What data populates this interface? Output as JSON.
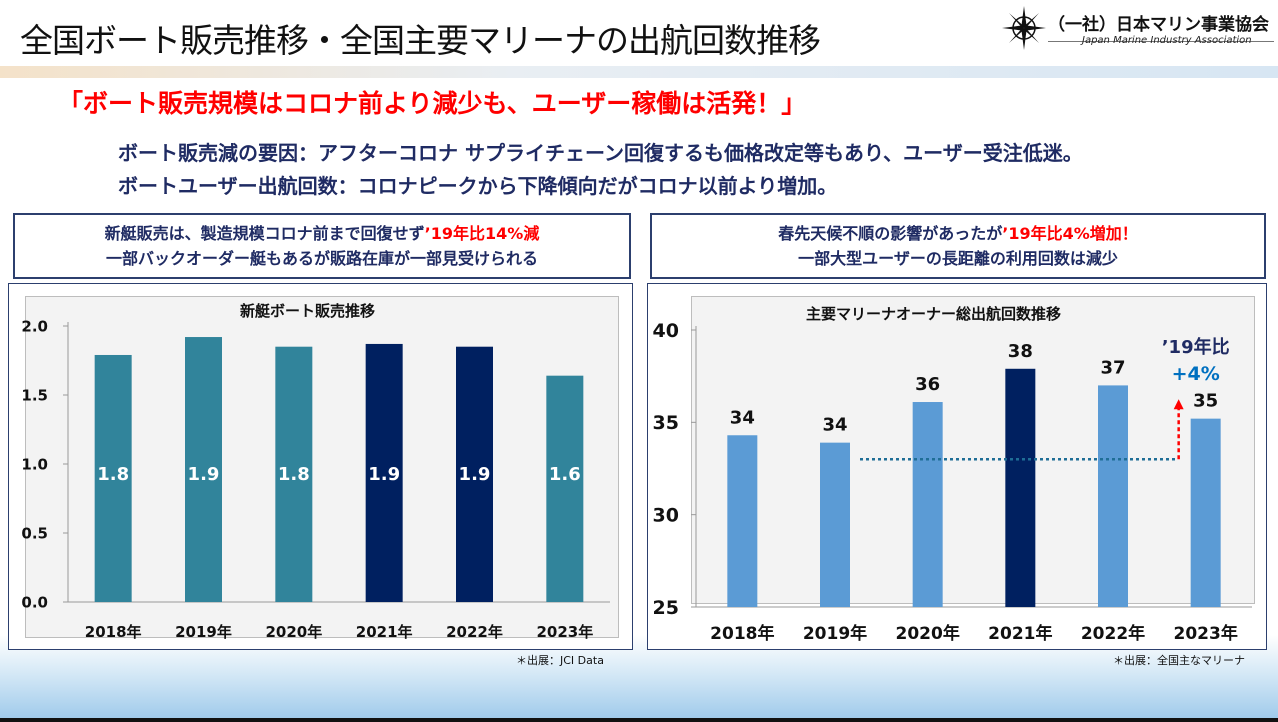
{
  "page": {
    "title": "全国ボート販売推移・全国主要マリーナの出航回数推移",
    "logo_name": "（一社）日本マリン事業協会",
    "logo_en": "Japan Marine Industry Association",
    "headline": "「ボート販売規模はコロナ前より減少も、ユーザー稼働は活発！」",
    "sub1": "ボート販売減の要因：アフターコロナ サプライチェーン回復するも価格改定等もあり、ユーザー受注低迷。",
    "sub2": "ボートユーザー出航回数：コロナピークから下降傾向だがコロナ以前より増加。"
  },
  "left_note": {
    "line1_a": "新艇販売は、製造規模コロナ前まで回復せず",
    "line1_b": "’19年比14%減",
    "line2": "一部バックオーダー艇もあるが販路在庫が一部見受けられる"
  },
  "right_note": {
    "line1_a": "春先天候不順の影響があったが",
    "line1_b": "’19年比4%増加！",
    "line2": "一部大型ユーザーの長距離の利用回数は減少"
  },
  "sources": {
    "left": "＊出展：JCI Data",
    "right": "＊出展：全国主なマリーナ"
  },
  "colors": {
    "teal": "#31849b",
    "navy": "#002060",
    "light_blue": "#5b9bd5",
    "red": "#ff0000",
    "accent_blue": "#0070c0"
  },
  "chart_data": [
    {
      "type": "bar",
      "title": "新艇ボート販売推移",
      "categories": [
        "2018年",
        "2019年",
        "2020年",
        "2021年",
        "2022年",
        "2023年"
      ],
      "values": [
        1.79,
        1.92,
        1.85,
        1.87,
        1.85,
        1.64
      ],
      "data_labels": [
        "1.8",
        "1.9",
        "1.8",
        "1.9",
        "1.9",
        "1.6"
      ],
      "highlight": [
        false,
        false,
        false,
        true,
        true,
        false
      ],
      "ylim": [
        0,
        2.0
      ],
      "yticks": [
        "0.0",
        "0.5",
        "1.0",
        "1.5",
        "2.0"
      ],
      "ytick_values": [
        0,
        0.5,
        1.0,
        1.5,
        2.0
      ],
      "grid": false
    },
    {
      "type": "bar",
      "title": "主要マリーナオーナー総出航回数推移",
      "categories": [
        "2018年",
        "2019年",
        "2020年",
        "2021年",
        "2022年",
        "2023年"
      ],
      "values": [
        34.3,
        33.9,
        36.1,
        37.9,
        37.0,
        35.2
      ],
      "data_labels": [
        "34",
        "34",
        "36",
        "38",
        "37",
        "35"
      ],
      "highlight": [
        false,
        false,
        false,
        true,
        false,
        false
      ],
      "ylim": [
        25,
        40
      ],
      "yticks": [
        "25",
        "30",
        "35",
        "40"
      ],
      "ytick_values": [
        25,
        30,
        35,
        40
      ],
      "grid": false,
      "annotation": {
        "line1": "’19年比",
        "line2": "+4%"
      }
    }
  ]
}
